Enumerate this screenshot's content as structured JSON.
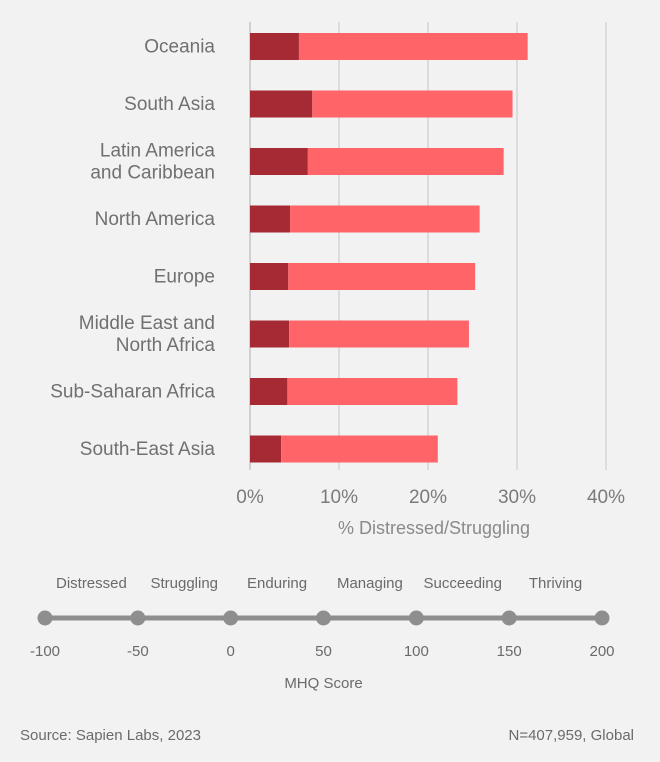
{
  "chart_data": {
    "type": "bar",
    "orientation": "horizontal",
    "stacked": true,
    "categories": [
      [
        "Oceania"
      ],
      [
        "South Asia"
      ],
      [
        "Latin America",
        "and Caribbean"
      ],
      [
        "North America"
      ],
      [
        "Europe"
      ],
      [
        "Middle East and",
        "North Africa"
      ],
      [
        "Sub-Saharan Africa"
      ],
      [
        "South-East Asia"
      ]
    ],
    "series": [
      {
        "name": "Distressed",
        "color": "#a52a33",
        "values": [
          5.5,
          7.0,
          6.5,
          4.5,
          4.3,
          4.4,
          4.2,
          3.5
        ]
      },
      {
        "name": "Struggling",
        "color": "#ff6468",
        "values": [
          25.7,
          22.5,
          22.0,
          21.3,
          21.0,
          20.2,
          19.1,
          17.6
        ]
      }
    ],
    "xlim": [
      0,
      40
    ],
    "xticks": [
      "0%",
      "10%",
      "20%",
      "30%",
      "40%"
    ],
    "xtick_values": [
      0,
      10,
      20,
      30,
      40
    ],
    "xlabel": "% Distressed/Struggling",
    "grid": "vertical"
  },
  "mhq_scale": {
    "categories": [
      "Distressed",
      "Struggling",
      "Enduring",
      "Managing",
      "Succeeding",
      "Thriving"
    ],
    "ticks": [
      "-100",
      "-50",
      "0",
      "50",
      "100",
      "150",
      "200"
    ],
    "tick_values": [
      -100,
      -50,
      0,
      50,
      100,
      150,
      200
    ],
    "title": "MHQ Score"
  },
  "footer": {
    "source": "Source: Sapien Labs, 2023",
    "sample": "N=407,959, Global"
  }
}
